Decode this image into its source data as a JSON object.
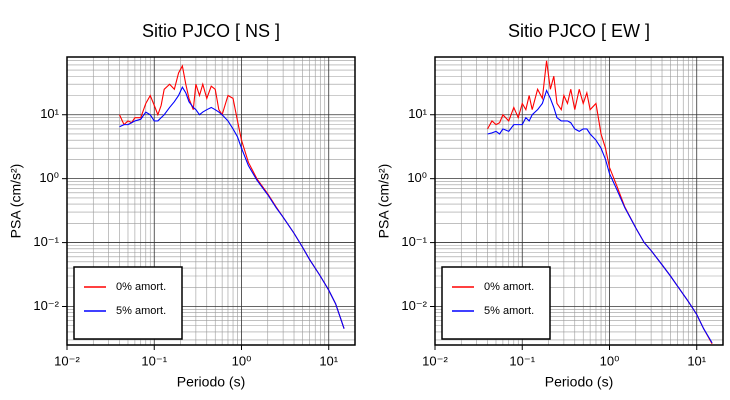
{
  "chart_data": [
    {
      "type": "line",
      "title": "Sitio PJCO [ NS ]",
      "x_label": "Periodo (s)",
      "y_label": "PSA (cm/s²)",
      "xscale": "log",
      "yscale": "log",
      "grid": true,
      "legend_position": "lower left",
      "xlim": [
        0.01,
        20
      ],
      "ylim": [
        0.0025,
        80
      ],
      "xticks": [
        {
          "value": 0.01,
          "label": "10⁻²"
        },
        {
          "value": 0.1,
          "label": "10⁻¹"
        },
        {
          "value": 1,
          "label": "10⁰"
        },
        {
          "value": 10,
          "label": "10¹"
        }
      ],
      "yticks": [
        {
          "value": 0.01,
          "label": "10⁻²"
        },
        {
          "value": 0.1,
          "label": "10⁻¹"
        },
        {
          "value": 1,
          "label": "10⁰"
        },
        {
          "value": 10,
          "label": "10¹"
        }
      ],
      "xminorticks": [
        0.02,
        0.03,
        0.04,
        0.05,
        0.06,
        0.07,
        0.08,
        0.09,
        0.2,
        0.3,
        0.4,
        0.5,
        0.6,
        0.7,
        0.8,
        0.9,
        2,
        3,
        4,
        5,
        6,
        7,
        8,
        9
      ],
      "yminorticks": [
        0.003,
        0.004,
        0.005,
        0.006,
        0.007,
        0.008,
        0.009,
        0.02,
        0.03,
        0.04,
        0.05,
        0.06,
        0.07,
        0.08,
        0.09,
        0.2,
        0.3,
        0.4,
        0.5,
        0.6,
        0.7,
        0.8,
        0.9,
        2,
        3,
        4,
        5,
        6,
        7,
        8,
        9,
        20,
        30,
        40,
        50,
        60,
        70
      ],
      "x": [
        0.04,
        0.045,
        0.05,
        0.055,
        0.06,
        0.07,
        0.08,
        0.09,
        0.1,
        0.11,
        0.12,
        0.13,
        0.15,
        0.17,
        0.19,
        0.21,
        0.23,
        0.25,
        0.28,
        0.3,
        0.33,
        0.36,
        0.4,
        0.45,
        0.5,
        0.55,
        0.6,
        0.7,
        0.8,
        0.9,
        1.0,
        1.2,
        1.5,
        2,
        2.5,
        3,
        4,
        5,
        6,
        8,
        10,
        12,
        15
      ],
      "series": [
        {
          "name": "0% amort.",
          "color": "#ff0000",
          "values": [
            10,
            7,
            8,
            7.5,
            9,
            9,
            15,
            20,
            14,
            10,
            14,
            25,
            30,
            25,
            45,
            58,
            30,
            18,
            12,
            30,
            20,
            30,
            18,
            28,
            25,
            12,
            10,
            20,
            18,
            8,
            4,
            1.8,
            1.0,
            0.58,
            0.36,
            0.25,
            0.14,
            0.085,
            0.055,
            0.03,
            0.018,
            0.011,
            0.0045
          ]
        },
        {
          "name": "5% amort.",
          "color": "#0000ff",
          "values": [
            6.5,
            7,
            7,
            7.5,
            8,
            8.5,
            11,
            10,
            8,
            8,
            9,
            10,
            13,
            16,
            20,
            27,
            22,
            16,
            13,
            12,
            10,
            11,
            12,
            13,
            12,
            11,
            10,
            8,
            6,
            4.5,
            3,
            1.6,
            0.95,
            0.56,
            0.35,
            0.25,
            0.14,
            0.085,
            0.055,
            0.03,
            0.018,
            0.011,
            0.0045
          ]
        }
      ]
    },
    {
      "type": "line",
      "title": "Sitio PJCO [ EW ]",
      "x_label": "Periodo (s)",
      "y_label": "PSA (cm/s²)",
      "xscale": "log",
      "yscale": "log",
      "grid": true,
      "legend_position": "lower left",
      "xlim": [
        0.01,
        20
      ],
      "ylim": [
        0.0025,
        80
      ],
      "xticks": [
        {
          "value": 0.01,
          "label": "10⁻²"
        },
        {
          "value": 0.1,
          "label": "10⁻¹"
        },
        {
          "value": 1,
          "label": "10⁰"
        },
        {
          "value": 10,
          "label": "10¹"
        }
      ],
      "yticks": [
        {
          "value": 0.01,
          "label": "10⁻²"
        },
        {
          "value": 0.1,
          "label": "10⁻¹"
        },
        {
          "value": 1,
          "label": "10⁰"
        },
        {
          "value": 10,
          "label": "10¹"
        }
      ],
      "xminorticks": [
        0.02,
        0.03,
        0.04,
        0.05,
        0.06,
        0.07,
        0.08,
        0.09,
        0.2,
        0.3,
        0.4,
        0.5,
        0.6,
        0.7,
        0.8,
        0.9,
        2,
        3,
        4,
        5,
        6,
        7,
        8,
        9
      ],
      "yminorticks": [
        0.003,
        0.004,
        0.005,
        0.006,
        0.007,
        0.008,
        0.009,
        0.02,
        0.03,
        0.04,
        0.05,
        0.06,
        0.07,
        0.08,
        0.09,
        0.2,
        0.3,
        0.4,
        0.5,
        0.6,
        0.7,
        0.8,
        0.9,
        2,
        3,
        4,
        5,
        6,
        7,
        8,
        9,
        20,
        30,
        40,
        50,
        60,
        70
      ],
      "x": [
        0.04,
        0.045,
        0.05,
        0.055,
        0.06,
        0.07,
        0.08,
        0.09,
        0.1,
        0.11,
        0.12,
        0.13,
        0.15,
        0.17,
        0.19,
        0.21,
        0.23,
        0.25,
        0.28,
        0.3,
        0.33,
        0.36,
        0.4,
        0.45,
        0.5,
        0.55,
        0.6,
        0.7,
        0.8,
        0.9,
        1.0,
        1.2,
        1.5,
        2,
        2.5,
        3,
        4,
        5,
        6,
        8,
        10,
        12,
        15
      ],
      "series": [
        {
          "name": "0% amort.",
          "color": "#ff0000",
          "values": [
            6,
            8,
            7,
            7.5,
            10,
            8,
            13,
            9,
            15,
            12,
            20,
            12,
            25,
            18,
            70,
            25,
            40,
            15,
            12,
            20,
            15,
            25,
            12,
            25,
            15,
            22,
            12,
            15,
            5,
            3,
            1.5,
            0.8,
            0.36,
            0.17,
            0.1,
            0.075,
            0.045,
            0.03,
            0.021,
            0.012,
            0.0075,
            0.0045,
            0.0026
          ]
        },
        {
          "name": "5% amort.",
          "color": "#0000ff",
          "values": [
            5,
            5.2,
            5.5,
            5,
            6,
            5.5,
            7,
            7,
            7,
            9,
            8,
            10,
            12,
            15,
            24,
            18,
            13,
            9,
            8,
            8,
            8,
            7.5,
            6,
            5.5,
            6,
            6,
            5,
            4,
            3,
            2,
            1.2,
            0.7,
            0.35,
            0.17,
            0.1,
            0.075,
            0.045,
            0.03,
            0.021,
            0.012,
            0.0075,
            0.0045,
            0.0027
          ]
        }
      ]
    }
  ]
}
